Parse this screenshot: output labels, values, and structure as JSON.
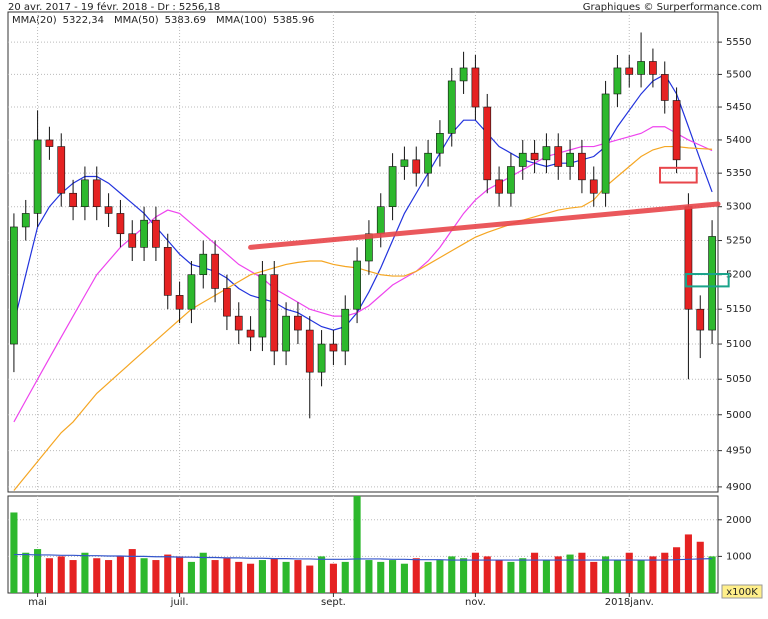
{
  "chart_data": {
    "type": "candlestick",
    "header": "20 avr. 2017 - 19 févr. 2018 - Dr : 5256,18",
    "source": "Graphiques © Surperformance.com",
    "legend": [
      {
        "name": "MMA(20)",
        "value": "5322,34",
        "color": "#2233dd"
      },
      {
        "name": "MMA(50)",
        "value": "5383.69",
        "color": "#ee44ee"
      },
      {
        "name": "MMA(100)",
        "value": "5385.96",
        "color": "#f5a623"
      }
    ],
    "categories": [
      null,
      null,
      "mai",
      null,
      null,
      null,
      null,
      null,
      null,
      null,
      null,
      null,
      null,
      null,
      "juil.",
      null,
      null,
      null,
      null,
      null,
      null,
      null,
      null,
      null,
      null,
      null,
      null,
      "sept.",
      null,
      null,
      null,
      null,
      null,
      null,
      null,
      null,
      null,
      null,
      null,
      "nov.",
      null,
      null,
      null,
      null,
      null,
      null,
      null,
      null,
      null,
      null,
      null,
      null,
      "2018janv.",
      null,
      null,
      null,
      null,
      null,
      null,
      null
    ],
    "open": [
      5100,
      5270,
      5290,
      5400,
      5390,
      5320,
      5300,
      5340,
      5300,
      5290,
      5260,
      5240,
      5280,
      5240,
      5170,
      5150,
      5200,
      5230,
      5180,
      5140,
      5120,
      5110,
      5200,
      5090,
      5140,
      5120,
      5060,
      5100,
      5090,
      5150,
      5220,
      5260,
      5300,
      5360,
      5370,
      5350,
      5380,
      5410,
      5490,
      5510,
      5450,
      5340,
      5320,
      5360,
      5380,
      5370,
      5390,
      5360,
      5380,
      5340,
      5320,
      5470,
      5510,
      5500,
      5520,
      5500,
      5460,
      5300,
      5150,
      5120
    ],
    "high": [
      5290,
      5310,
      5445,
      5420,
      5410,
      5340,
      5360,
      5360,
      5320,
      5310,
      5280,
      5300,
      5300,
      5260,
      5190,
      5220,
      5250,
      5250,
      5200,
      5160,
      5140,
      5220,
      5220,
      5160,
      5160,
      5140,
      5120,
      5120,
      5170,
      5240,
      5280,
      5320,
      5380,
      5390,
      5390,
      5400,
      5430,
      5510,
      5535,
      5530,
      5470,
      5360,
      5380,
      5400,
      5400,
      5410,
      5410,
      5400,
      5400,
      5360,
      5490,
      5530,
      5530,
      5565,
      5540,
      5520,
      5480,
      5320,
      5170,
      5280
    ],
    "low": [
      5060,
      5250,
      5270,
      5370,
      5300,
      5280,
      5280,
      5280,
      5270,
      5240,
      5220,
      5220,
      5220,
      5150,
      5130,
      5130,
      5180,
      5160,
      5120,
      5100,
      5090,
      5090,
      5070,
      5070,
      5100,
      4995,
      5040,
      5070,
      5070,
      5130,
      5200,
      5240,
      5280,
      5340,
      5330,
      5330,
      5360,
      5390,
      5470,
      5430,
      5320,
      5300,
      5300,
      5340,
      5350,
      5350,
      5340,
      5340,
      5320,
      5300,
      5300,
      5450,
      5480,
      5480,
      5480,
      5440,
      5350,
      5050,
      5080,
      5100
    ],
    "close": [
      5270,
      5290,
      5400,
      5390,
      5320,
      5300,
      5340,
      5300,
      5290,
      5260,
      5240,
      5280,
      5240,
      5170,
      5150,
      5200,
      5230,
      5180,
      5140,
      5120,
      5110,
      5200,
      5090,
      5140,
      5120,
      5060,
      5100,
      5090,
      5150,
      5220,
      5260,
      5300,
      5360,
      5370,
      5350,
      5380,
      5410,
      5490,
      5510,
      5450,
      5340,
      5320,
      5360,
      5380,
      5370,
      5390,
      5360,
      5380,
      5340,
      5320,
      5470,
      5510,
      5500,
      5520,
      5500,
      5460,
      5370,
      5150,
      5120,
      5256
    ],
    "up_color": "#2db82d",
    "down_color": "#e52222",
    "series": [
      {
        "name": "MMA(20)",
        "color": "#2233dd",
        "values": [
          5130,
          5200,
          5270,
          5300,
          5320,
          5335,
          5345,
          5345,
          5335,
          5320,
          5305,
          5290,
          5270,
          5250,
          5230,
          5215,
          5210,
          5205,
          5195,
          5180,
          5170,
          5165,
          5160,
          5150,
          5145,
          5135,
          5125,
          5120,
          5125,
          5145,
          5175,
          5210,
          5250,
          5290,
          5320,
          5350,
          5380,
          5410,
          5430,
          5430,
          5410,
          5390,
          5380,
          5370,
          5365,
          5360,
          5365,
          5365,
          5370,
          5375,
          5390,
          5420,
          5445,
          5470,
          5490,
          5500,
          5470,
          5420,
          5370,
          5322
        ]
      },
      {
        "name": "MMA(50)",
        "color": "#ee44ee",
        "values": [
          4990,
          5020,
          5050,
          5080,
          5110,
          5140,
          5170,
          5200,
          5220,
          5240,
          5255,
          5270,
          5285,
          5295,
          5290,
          5275,
          5260,
          5245,
          5230,
          5215,
          5205,
          5195,
          5180,
          5170,
          5160,
          5150,
          5145,
          5140,
          5140,
          5145,
          5155,
          5170,
          5185,
          5195,
          5205,
          5220,
          5240,
          5265,
          5290,
          5310,
          5325,
          5335,
          5345,
          5355,
          5365,
          5375,
          5380,
          5385,
          5390,
          5390,
          5395,
          5400,
          5405,
          5410,
          5420,
          5420,
          5410,
          5400,
          5392,
          5384
        ]
      },
      {
        "name": "MMA(100)",
        "color": "#f5a623",
        "values": [
          4895,
          4915,
          4935,
          4955,
          4975,
          4990,
          5010,
          5030,
          5045,
          5060,
          5075,
          5090,
          5105,
          5120,
          5135,
          5150,
          5160,
          5170,
          5180,
          5190,
          5200,
          5205,
          5210,
          5215,
          5218,
          5220,
          5220,
          5215,
          5212,
          5210,
          5205,
          5200,
          5198,
          5198,
          5205,
          5215,
          5225,
          5235,
          5245,
          5255,
          5262,
          5268,
          5274,
          5280,
          5285,
          5290,
          5295,
          5298,
          5300,
          5310,
          5330,
          5345,
          5360,
          5375,
          5385,
          5390,
          5390,
          5388,
          5387,
          5386
        ]
      }
    ],
    "ylim": [
      4893,
      5597
    ],
    "yticks": [
      4900,
      4950,
      5000,
      5050,
      5100,
      5150,
      5200,
      5250,
      5300,
      5350,
      5400,
      5450,
      5500,
      5550
    ],
    "log": true,
    "grid": true,
    "trendline": {
      "x": [
        20,
        59.5
      ],
      "y": [
        5240,
        5304
      ],
      "color": "#e8464b"
    },
    "boxes": [
      {
        "x": [
          54.6,
          57.7
        ],
        "y": [
          5336,
          5358
        ],
        "color": "#e8464b"
      },
      {
        "x": [
          56.8,
          60.4
        ],
        "y": [
          5183,
          5201
        ],
        "color": "#1aa38a"
      }
    ],
    "volume": {
      "values": [
        2200,
        1100,
        1200,
        950,
        1000,
        900,
        1100,
        950,
        900,
        1000,
        1200,
        950,
        900,
        1050,
        1000,
        850,
        1100,
        900,
        950,
        850,
        800,
        900,
        950,
        850,
        900,
        750,
        1000,
        800,
        850,
        2650,
        900,
        850,
        900,
        800,
        950,
        850,
        900,
        1000,
        950,
        1100,
        1000,
        900,
        850,
        950,
        1100,
        900,
        1000,
        1050,
        1100,
        850,
        1000,
        900,
        1100,
        900,
        1000,
        1100,
        1250,
        1600,
        1400,
        1000
      ],
      "average": [
        1050,
        1050,
        1040,
        1040,
        1030,
        1030,
        1020,
        1020,
        1010,
        1010,
        1000,
        1000,
        990,
        990,
        980,
        980,
        970,
        970,
        960,
        960,
        950,
        950,
        940,
        940,
        930,
        930,
        920,
        920,
        920,
        930,
        930,
        930,
        920,
        920,
        910,
        910,
        910,
        900,
        900,
        900,
        900,
        900,
        900,
        900,
        900,
        900,
        900,
        900,
        900,
        900,
        900,
        900,
        900,
        900,
        900,
        900,
        910,
        920,
        930,
        940
      ],
      "average_color": "#3355cc",
      "ylim": [
        0,
        2650
      ],
      "yticks": [
        1000,
        2000
      ],
      "unit": "x100K"
    }
  }
}
